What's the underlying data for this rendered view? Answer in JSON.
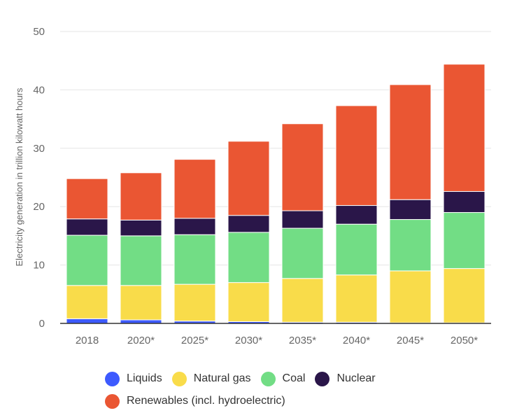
{
  "chart_data": {
    "type": "bar",
    "stacked": true,
    "title": "",
    "xlabel": "",
    "ylabel": "Electricity generation in trillion kilowatt hours",
    "ylim": [
      0,
      50
    ],
    "yticks": [
      0,
      10,
      20,
      30,
      40,
      50
    ],
    "grid": true,
    "legend_position": "bottom",
    "categories": [
      "2018",
      "2020*",
      "2025*",
      "2030*",
      "2035*",
      "2040*",
      "2045*",
      "2050*"
    ],
    "series": [
      {
        "name": "Liquids",
        "color": "#3d5afe",
        "values": [
          0.8,
          0.6,
          0.4,
          0.3,
          0.2,
          0.2,
          0.1,
          0.1
        ]
      },
      {
        "name": "Natural gas",
        "color": "#f9dc4a",
        "values": [
          5.7,
          5.9,
          6.3,
          6.7,
          7.5,
          8.1,
          8.9,
          9.3
        ]
      },
      {
        "name": "Coal",
        "color": "#72dd85",
        "values": [
          8.6,
          8.5,
          8.5,
          8.6,
          8.6,
          8.7,
          8.8,
          9.6
        ]
      },
      {
        "name": "Nuclear",
        "color": "#2a1649",
        "values": [
          2.8,
          2.7,
          2.8,
          2.9,
          3.0,
          3.2,
          3.4,
          3.6
        ]
      },
      {
        "name": "Renewables (incl. hydroelectric)",
        "color": "#ea5633",
        "values": [
          6.9,
          8.1,
          10.1,
          12.7,
          14.9,
          17.1,
          19.7,
          21.8
        ]
      }
    ]
  }
}
